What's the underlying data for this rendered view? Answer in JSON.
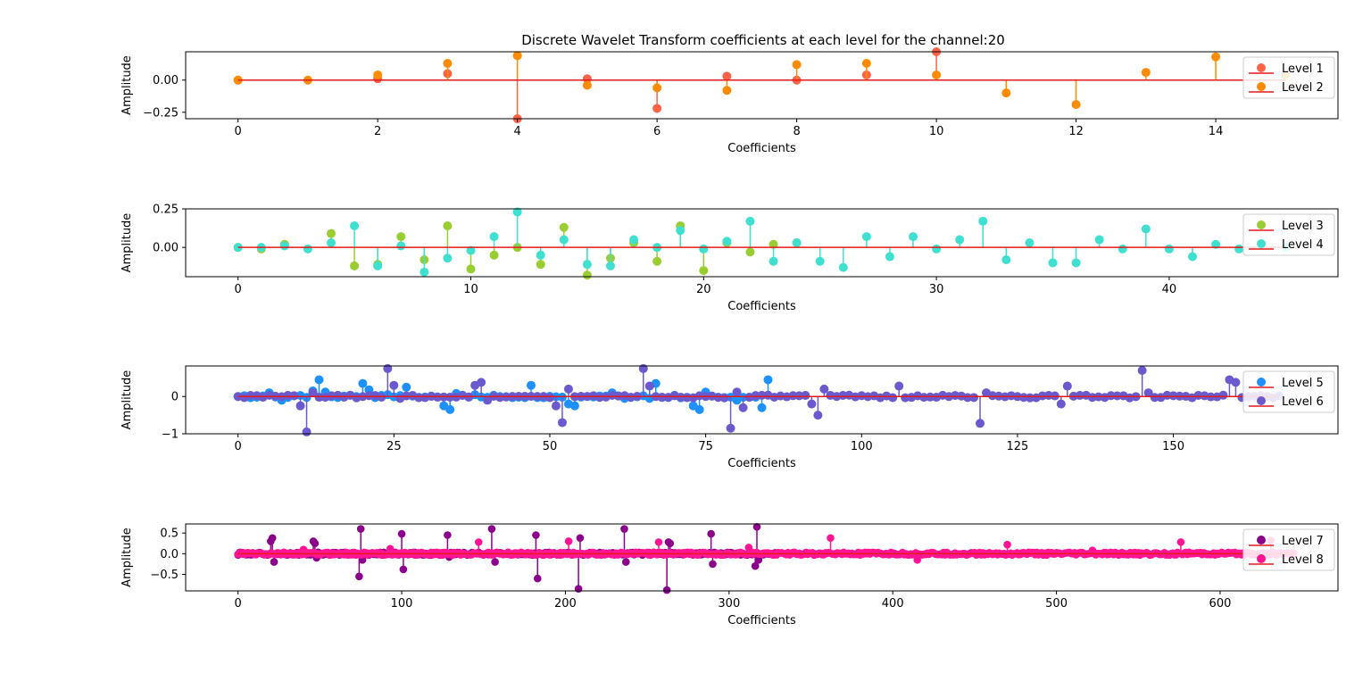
{
  "title": "Discrete Wavelet Transform coefficients at each level for the channel:20",
  "colors": {
    "baseline": "#e41a1c",
    "axes": "#000000",
    "background": "#ffffff"
  },
  "chart_data": [
    {
      "type": "stem",
      "xlabel": "Coefficients",
      "ylabel": "Amplitude",
      "xlim": [
        -0.75,
        15.75
      ],
      "ylim": [
        -0.3,
        0.22
      ],
      "xticks": [
        0,
        2,
        4,
        6,
        8,
        10,
        12,
        14
      ],
      "yticks": [
        -0.25,
        0.0
      ],
      "ytick_labels": [
        "−0.25",
        "0.00"
      ],
      "legend_position": "upper right",
      "series": [
        {
          "name": "Level 1",
          "color": "#ff6347",
          "values": [
            0.0,
            null,
            0.01,
            0.05,
            -0.3,
            0.01,
            -0.22,
            0.03,
            0.0,
            0.04,
            0.22,
            null,
            null,
            null,
            null,
            null
          ]
        },
        {
          "name": "Level 2",
          "color": "#ff8c00",
          "values": [
            0.0,
            0.0,
            0.04,
            0.13,
            0.19,
            -0.04,
            -0.06,
            -0.08,
            0.12,
            0.13,
            0.04,
            -0.1,
            -0.19,
            0.06,
            0.18,
            0.04
          ]
        }
      ]
    },
    {
      "type": "stem",
      "xlabel": "Coefficients",
      "ylabel": "Amplitude",
      "xlim": [
        -2.25,
        47.25
      ],
      "ylim": [
        -0.19,
        0.25
      ],
      "xticks": [
        0,
        10,
        20,
        30,
        40
      ],
      "yticks": [
        0.0,
        0.25
      ],
      "ytick_labels": [
        "0.00",
        "0.25"
      ],
      "legend_position": "upper right",
      "series": [
        {
          "name": "Level 3",
          "color": "#9acd32",
          "values": [
            0.0,
            -0.01,
            0.02,
            null,
            0.09,
            -0.12,
            -0.11,
            0.07,
            -0.08,
            0.14,
            -0.14,
            -0.05,
            0.0,
            -0.11,
            0.13,
            -0.18,
            -0.07,
            0.03,
            -0.09,
            0.14,
            -0.15,
            0.03,
            -0.03,
            0.02,
            0.03
          ]
        },
        {
          "name": "Level 4",
          "color": "#40e0d0",
          "values": [
            0.0,
            0.0,
            0.01,
            -0.01,
            0.03,
            0.14,
            -0.12,
            0.01,
            -0.16,
            -0.07,
            -0.02,
            0.07,
            0.23,
            -0.05,
            0.05,
            -0.11,
            -0.12,
            0.05,
            0.0,
            0.11,
            -0.01,
            0.04,
            0.17,
            -0.09,
            0.03,
            -0.09,
            -0.13,
            0.07,
            -0.06,
            0.07,
            -0.01,
            0.05,
            0.17,
            -0.08,
            0.03,
            -0.1,
            -0.1,
            0.05,
            -0.01,
            0.12,
            -0.01,
            -0.06,
            0.02,
            -0.01,
            0.02,
            0.0
          ]
        }
      ]
    },
    {
      "type": "stem",
      "xlabel": "Coefficients",
      "ylabel": "Amplitude",
      "xlim": [
        -8.4,
        176.4
      ],
      "ylim": [
        -1.0,
        0.82
      ],
      "xticks": [
        0,
        25,
        50,
        75,
        100,
        125,
        150
      ],
      "yticks": [
        -1,
        0
      ],
      "ytick_labels": [
        "−1",
        "0"
      ],
      "legend_position": "upper right",
      "series": [
        {
          "name": "Level 5",
          "color": "#1e90ff",
          "spikes": [
            [
              0,
              0.0
            ],
            [
              5,
              0.1
            ],
            [
              7,
              -0.1
            ],
            [
              12,
              0.15
            ],
            [
              13,
              0.45
            ],
            [
              14,
              0.12
            ],
            [
              20,
              0.35
            ],
            [
              21,
              0.18
            ],
            [
              24,
              0.05
            ],
            [
              27,
              0.25
            ],
            [
              33,
              -0.25
            ],
            [
              34,
              -0.35
            ],
            [
              35,
              0.08
            ],
            [
              38,
              0.05
            ],
            [
              47,
              0.3
            ],
            [
              53,
              -0.2
            ],
            [
              54,
              -0.25
            ],
            [
              60,
              0.1
            ],
            [
              62,
              -0.05
            ],
            [
              66,
              -0.05
            ],
            [
              67,
              0.35
            ],
            [
              73,
              -0.25
            ],
            [
              74,
              -0.35
            ],
            [
              75,
              0.12
            ],
            [
              80,
              -0.1
            ],
            [
              84,
              -0.3
            ],
            [
              85,
              0.45
            ]
          ],
          "noise_x_max": 85
        },
        {
          "name": "Level 6",
          "color": "#6a5acd",
          "spikes": [
            [
              0,
              0.0
            ],
            [
              11,
              -0.95
            ],
            [
              10,
              -0.25
            ],
            [
              12,
              0.1
            ],
            [
              24,
              0.75
            ],
            [
              25,
              0.3
            ],
            [
              26,
              -0.05
            ],
            [
              38,
              0.3
            ],
            [
              39,
              0.38
            ],
            [
              40,
              -0.1
            ],
            [
              51,
              -0.25
            ],
            [
              52,
              -0.7
            ],
            [
              53,
              0.2
            ],
            [
              65,
              0.75
            ],
            [
              66,
              0.28
            ],
            [
              79,
              -0.85
            ],
            [
              80,
              0.12
            ],
            [
              81,
              -0.3
            ],
            [
              92,
              -0.2
            ],
            [
              93,
              -0.5
            ],
            [
              94,
              0.2
            ],
            [
              106,
              0.28
            ],
            [
              119,
              -0.72
            ],
            [
              120,
              0.1
            ],
            [
              132,
              -0.2
            ],
            [
              133,
              0.28
            ],
            [
              145,
              0.7
            ],
            [
              146,
              0.1
            ],
            [
              159,
              0.45
            ],
            [
              160,
              0.38
            ]
          ],
          "noise_x_max": 167
        }
      ]
    },
    {
      "type": "stem",
      "xlabel": "Coefficients",
      "ylabel": "Amplitude",
      "xlim": [
        -32,
        672
      ],
      "ylim": [
        -0.9,
        0.72
      ],
      "xticks": [
        0,
        100,
        200,
        300,
        400,
        500,
        600
      ],
      "yticks": [
        -0.5,
        0.0,
        0.5
      ],
      "ytick_labels": [
        "−0.5",
        "0.0",
        "0.5"
      ],
      "legend_position": "upper right",
      "series": [
        {
          "name": "Level 7",
          "color": "#8b008b",
          "spikes": [
            [
              20,
              0.3
            ],
            [
              21,
              0.38
            ],
            [
              22,
              -0.2
            ],
            [
              46,
              0.3
            ],
            [
              47,
              0.25
            ],
            [
              48,
              -0.1
            ],
            [
              74,
              -0.55
            ],
            [
              75,
              0.6
            ],
            [
              76,
              -0.15
            ],
            [
              100,
              0.48
            ],
            [
              101,
              -0.38
            ],
            [
              128,
              0.45
            ],
            [
              129,
              -0.08
            ],
            [
              155,
              0.6
            ],
            [
              156,
              0.0
            ],
            [
              157,
              -0.2
            ],
            [
              182,
              0.45
            ],
            [
              183,
              -0.6
            ],
            [
              208,
              -0.85
            ],
            [
              209,
              0.38
            ],
            [
              236,
              0.6
            ],
            [
              237,
              -0.2
            ],
            [
              262,
              -0.88
            ],
            [
              263,
              0.28
            ],
            [
              264,
              0.25
            ],
            [
              289,
              0.48
            ],
            [
              290,
              -0.25
            ],
            [
              316,
              -0.3
            ],
            [
              317,
              0.65
            ],
            [
              318,
              -0.15
            ]
          ],
          "noise_x_max": 330
        },
        {
          "name": "Level 8",
          "color": "#ff1493",
          "spikes": [
            [
              40,
              0.1
            ],
            [
              93,
              0.12
            ],
            [
              147,
              0.28
            ],
            [
              202,
              0.3
            ],
            [
              257,
              0.28
            ],
            [
              312,
              0.15
            ],
            [
              362,
              0.38
            ],
            [
              415,
              -0.15
            ],
            [
              470,
              0.22
            ],
            [
              522,
              0.08
            ],
            [
              576,
              0.28
            ],
            [
              631,
              0.32
            ]
          ],
          "noise_x_max": 645
        }
      ]
    }
  ]
}
